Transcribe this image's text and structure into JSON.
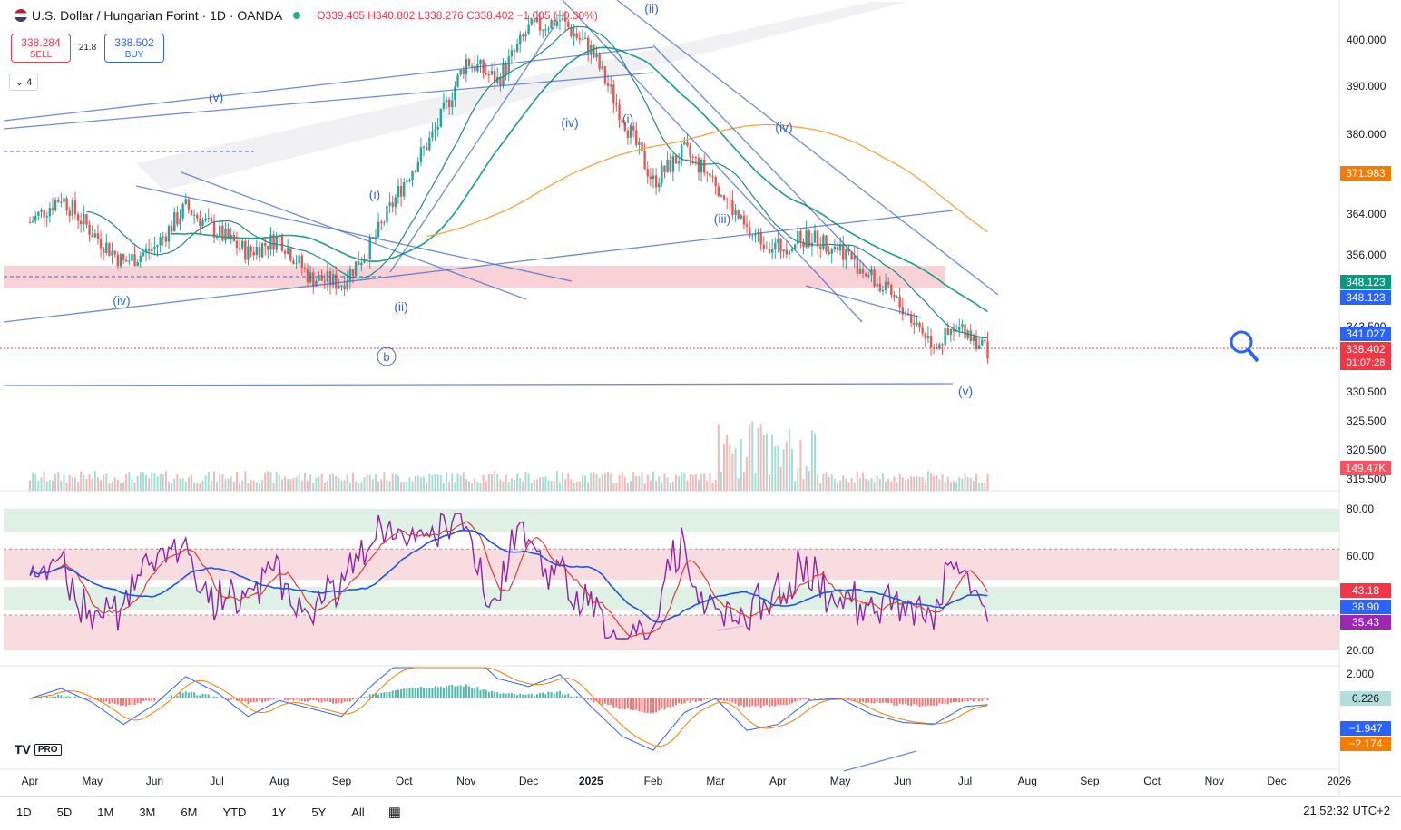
{
  "header": {
    "symbol": "U.S. Dollar / Hungarian Forint · 1D · OANDA",
    "ohlc_open": "O339.405",
    "ohlc_high": "H340.802",
    "ohlc_low": "L338.276",
    "ohlc_close": "C338.402",
    "ohlc_change": "−1.005 (−0.30%)"
  },
  "trade": {
    "sell_price": "338.284",
    "sell_label": "SELL",
    "spread": "21.8",
    "buy_price": "338.502",
    "buy_label": "BUY"
  },
  "collapse_label": "⌄ 4",
  "badges": {
    "ma_orange": "371.983",
    "green1": "348.123",
    "blue1": "348.123",
    "blue2": "341.027",
    "last_price": "338.402",
    "countdown": "01:07:28",
    "volume": "149.47K",
    "rsi_red": "43.18",
    "rsi_blue": "38.90",
    "rsi_purple": "35.43",
    "macd_hist": "0.226",
    "macd_line": "−1.947",
    "macd_signal": "−2.174"
  },
  "colors": {
    "up": "#26a69a",
    "down": "#ef5350",
    "wave_blue": "#3a67c7",
    "wave_red": "#d32f2f",
    "ma_orange": "#f7a23b",
    "ma_teal": "#1f8a84",
    "rsi_purple": "#8e24aa",
    "zone_red": "#f7cdd1",
    "zone_green": "#d6eedd"
  },
  "timeframes": [
    "1D",
    "5D",
    "1M",
    "3M",
    "6M",
    "YTD",
    "1Y",
    "5Y",
    "All"
  ],
  "clock": "21:52:32 UTC+2",
  "chart_data": {
    "type": "candlestick",
    "title": "U.S. Dollar / Hungarian Forint · 1D · OANDA",
    "price_axis": {
      "ticks": [
        400,
        390,
        380,
        364,
        356,
        343.5,
        330.5,
        325.5,
        320.5,
        315.5
      ],
      "tick_labels": [
        "400.000",
        "390.000",
        "380.000",
        "364.000",
        "356.000",
        "343.500",
        "330.500",
        "325.500",
        "320.500",
        "315.500"
      ]
    },
    "time_axis": {
      "labels": [
        "Apr",
        "May",
        "Jun",
        "Jul",
        "Aug",
        "Sep",
        "Oct",
        "Nov",
        "Dec",
        "2025",
        "Feb",
        "Mar",
        "Apr",
        "May",
        "Jun",
        "Jul",
        "Aug",
        "Sep",
        "Oct",
        "Nov",
        "Dec",
        "2026"
      ]
    },
    "price_path": {
      "x_month_index": [
        0,
        0.5,
        1.0,
        1.5,
        2.0,
        2.5,
        3.0,
        3.5,
        4.0,
        4.5,
        5.0,
        5.5,
        6.0,
        6.5,
        7.0,
        7.5,
        8.0,
        8.5,
        9.0,
        9.5,
        10.0,
        10.5,
        11.0,
        11.5,
        12.0,
        12.5,
        13.0,
        13.5,
        14.0,
        14.5,
        15.0,
        15.4
      ],
      "close": [
        364,
        369,
        362,
        356,
        359,
        367,
        362,
        358,
        361,
        353,
        352,
        360,
        372,
        382,
        396,
        392,
        402,
        404,
        398,
        385,
        372,
        378,
        372,
        362,
        359,
        361,
        359,
        353,
        347,
        340,
        343,
        338.4
      ]
    },
    "wave_labels_main": [
      "(iv)",
      "(v)",
      "(i)",
      "(ii)",
      "(iii)",
      "(iv)",
      "(v)",
      "(ii)",
      "(i)",
      "(iv)",
      "b"
    ],
    "rsi": {
      "levels": [
        80,
        60,
        20
      ],
      "tick_labels": [
        "80.00",
        "60.00",
        "20.00"
      ],
      "last": [
        43.18,
        38.9,
        35.43
      ]
    },
    "macd": {
      "tick_labels": [
        "2.000"
      ],
      "last_hist": 0.226,
      "last_macd": -1.947,
      "last_signal": -2.174
    }
  }
}
